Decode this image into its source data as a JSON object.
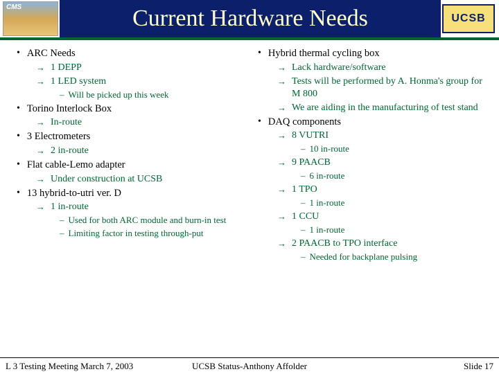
{
  "title": "Current Hardware Needs",
  "logos": {
    "left_label": "CMS",
    "right_label": "UCSB"
  },
  "colors": {
    "title_bg": "#0b1f6b",
    "title_text": "#ffffcc",
    "accent_green": "#006633",
    "text_black": "#000000",
    "ucsb_box_bg": "#f5e07a"
  },
  "left": {
    "i0": {
      "label": "ARC Needs",
      "s0": "1 DEPP",
      "s1": "1 LED system",
      "s1n0": "Will be picked up this week"
    },
    "i1": {
      "label": "Torino Interlock Box",
      "s0": "In-route"
    },
    "i2": {
      "label": "3 Electrometers",
      "s0": "2 in-route"
    },
    "i3": {
      "label": "Flat cable-Lemo adapter",
      "s0": "Under construction at UCSB"
    },
    "i4": {
      "label": "13 hybrid-to-utri ver. D",
      "s0": "1 in-route",
      "s0n0": "Used for both ARC module and burn-in test",
      "s0n1": "Limiting factor in testing through-put"
    }
  },
  "right": {
    "i0": {
      "label": "Hybrid thermal cycling box",
      "s0": "Lack hardware/software",
      "s1": "Tests will be performed by A. Honma's group for M 800",
      "s2": "We are aiding in the manufacturing of test stand"
    },
    "i1": {
      "label": "DAQ components",
      "s0": "8 VUTRI",
      "s0n0": "10 in-route",
      "s1": "9 PAACB",
      "s1n0": "6 in-route",
      "s2": "1 TPO",
      "s2n0": "1 in-route",
      "s3": "1 CCU",
      "s3n0": "1 in-route",
      "s4": "2 PAACB to TPO interface",
      "s4n0": "Needed for backplane pulsing"
    }
  },
  "footer": {
    "left": "L 3 Testing Meeting March 7, 2003",
    "center": "UCSB Status-Anthony Affolder",
    "right": "Slide 17"
  }
}
